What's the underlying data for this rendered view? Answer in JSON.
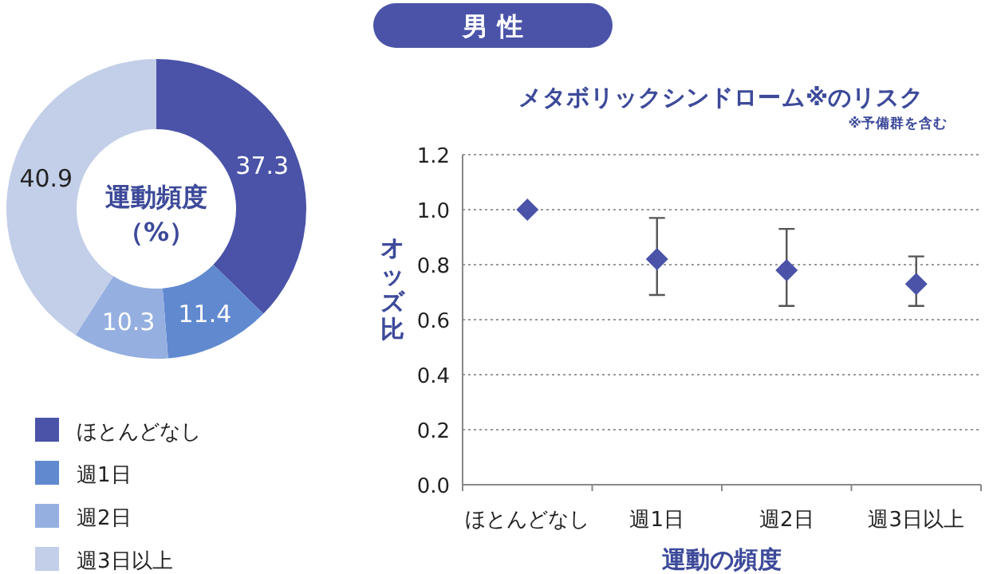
{
  "chart_data": [
    {
      "type": "donut",
      "title": "運動頻度",
      "subtitle": "（%）",
      "annotations": [
        "男 性"
      ],
      "categories": [
        "ほとんどなし",
        "週1日",
        "週2日",
        "週3日以上"
      ],
      "values": [
        37.3,
        11.4,
        10.3,
        40.9
      ],
      "colors": [
        "#4a53a8",
        "#6189d0",
        "#95afe0",
        "#c3cfe8"
      ],
      "data_labels": true,
      "legend": "bottom"
    },
    {
      "type": "scatter",
      "title": "メタボリックシンドローム※のリスク",
      "annotations": [
        "※予備群を含む"
      ],
      "xlabel": "運動の頻度",
      "ylabel": "オッズ比",
      "categories": [
        "ほとんどなし",
        "週1日",
        "週2日",
        "週3日以上"
      ],
      "series": [
        {
          "color": "#4a53a8",
          "values": [
            1.0,
            0.82,
            0.78,
            0.73
          ],
          "errors": [
            null,
            [
              0.69,
              0.97
            ],
            [
              0.65,
              0.93
            ],
            [
              0.65,
              0.83
            ]
          ]
        }
      ],
      "ylim": [
        0,
        1.2
      ],
      "yticks": [
        {
          "value": 0,
          "label": "0.0"
        },
        {
          "value": 0.2,
          "label": "0.2"
        },
        {
          "value": 0.4,
          "label": "0.4"
        },
        {
          "value": 0.6,
          "label": "0.6"
        },
        {
          "value": 0.8,
          "label": "0.8"
        },
        {
          "value": 1.0,
          "label": "1.0"
        },
        {
          "value": 1.2,
          "label": "1.2"
        }
      ],
      "grid": "y",
      "marker": "diamond"
    }
  ]
}
